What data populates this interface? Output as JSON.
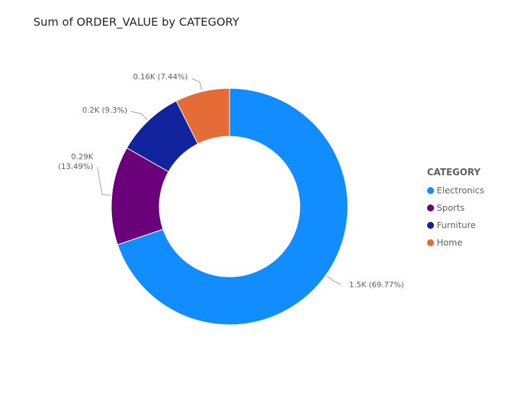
{
  "chart_data": {
    "type": "pie",
    "title": "Sum of ORDER_VALUE by CATEGORY",
    "legend_title": "CATEGORY",
    "legend_position": "right",
    "donut": true,
    "categories": [
      "Electronics",
      "Sports",
      "Furniture",
      "Home"
    ],
    "values": [
      1.5,
      0.29,
      0.2,
      0.16
    ],
    "percents": [
      69.77,
      13.49,
      9.3,
      7.44
    ],
    "data_labels": [
      "1.5K (69.77%)",
      "0.29K\n(13.49%)",
      "0.2K (9.3%)",
      "0.16K (7.44%)"
    ],
    "value_unit": "K",
    "colors": [
      "#118DFF",
      "#6B007B",
      "#12239E",
      "#E66C37"
    ]
  }
}
